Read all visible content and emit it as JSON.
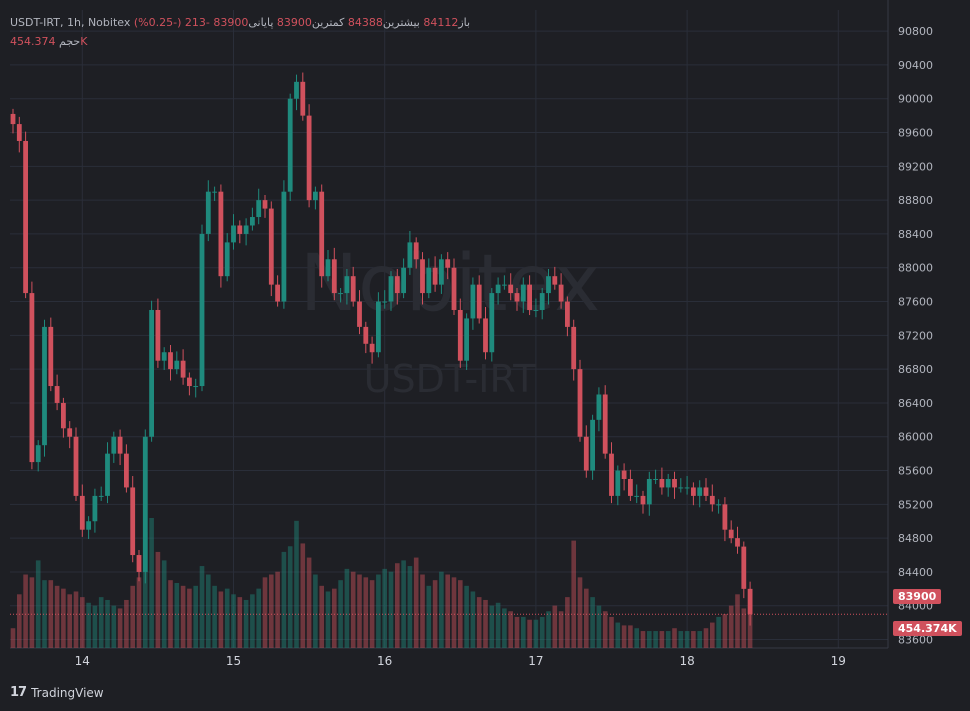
{
  "legend": {
    "symbol": "USDT-IRT, 1h, Nobitex",
    "open_label": "باز",
    "open": "84112",
    "high_label": "بیشترین",
    "high": "84388",
    "low_label": "کمترین",
    "low": "83900",
    "close_label": "پایانی",
    "close": "83900",
    "change": "-213 (-0.25%)",
    "volume_label": "حجم",
    "volume": "454.374K"
  },
  "watermark": {
    "line1": "Nobitex",
    "line2": "USDT-IRT"
  },
  "footer": {
    "brand": "TradingView",
    "logo": "17"
  },
  "colors": {
    "up": "#1f8a7d",
    "down": "#d0515d",
    "background": "#1e1f24",
    "grid": "#2a2e39"
  },
  "chart_data": {
    "type": "candlestick",
    "yticks": [
      83600,
      84000,
      84400,
      84800,
      85200,
      85600,
      86000,
      86400,
      86800,
      87200,
      87600,
      88000,
      88400,
      88800,
      89200,
      89600,
      90000,
      90400,
      90800
    ],
    "ytick_labels": [
      "83600",
      "84000",
      "84400",
      "84800",
      "85200",
      "85600",
      "86000",
      "86400",
      "86800",
      "87200",
      "87600",
      "88000",
      "88400",
      "88800",
      "89200",
      "89600",
      "90000",
      "90400",
      "90800"
    ],
    "ylim": [
      83500,
      91050
    ],
    "xtick_labels": [
      "14",
      "15",
      "16",
      "17",
      "18",
      "19"
    ],
    "xtick_hours": [
      11,
      35,
      59,
      83,
      107,
      131
    ],
    "current_price": "83900",
    "current_volume": "454.374K",
    "close": [
      89700,
      89500,
      87700,
      85700,
      85900,
      87300,
      86600,
      86400,
      86100,
      86000,
      85300,
      84900,
      85000,
      85300,
      85300,
      85800,
      86000,
      85800,
      85400,
      84600,
      84400,
      86000,
      87500,
      86900,
      87000,
      86800,
      86900,
      86700,
      86600,
      86600,
      88400,
      88900,
      88900,
      87900,
      88300,
      88500,
      88400,
      88500,
      88600,
      88800,
      88700,
      87800,
      87600,
      88900,
      90000,
      90200,
      89800,
      88800,
      88900,
      87900,
      88100,
      87700,
      87700,
      87900,
      87600,
      87300,
      87100,
      87000,
      87600,
      87600,
      87900,
      87700,
      88000,
      88300,
      88100,
      87700,
      88000,
      87800,
      88100,
      88000,
      87500,
      86900,
      87400,
      87800,
      87400,
      87000,
      87700,
      87800,
      87800,
      87700,
      87600,
      87800,
      87500,
      87500,
      87700,
      87900,
      87800,
      87600,
      87300,
      86800,
      86000,
      85600,
      86200,
      86500,
      85800,
      85300,
      85600,
      85500,
      85300,
      85300,
      85200,
      85500,
      85500,
      85400,
      85500,
      85400,
      85400,
      85400,
      85300,
      85400,
      85300,
      85200,
      85200,
      84900,
      84800,
      84700,
      84200,
      83900
    ],
    "volume": [
      14,
      38,
      52,
      50,
      62,
      48,
      48,
      44,
      42,
      38,
      40,
      36,
      32,
      30,
      36,
      34,
      30,
      28,
      34,
      44,
      50,
      82,
      92,
      68,
      62,
      48,
      46,
      44,
      42,
      44,
      58,
      52,
      44,
      40,
      42,
      38,
      36,
      34,
      38,
      42,
      50,
      52,
      54,
      68,
      72,
      90,
      74,
      64,
      52,
      44,
      40,
      42,
      48,
      56,
      54,
      52,
      50,
      48,
      52,
      56,
      54,
      60,
      62,
      58,
      64,
      52,
      44,
      48,
      54,
      52,
      50,
      48,
      44,
      40,
      36,
      34,
      30,
      32,
      28,
      26,
      22,
      22,
      20,
      20,
      22,
      26,
      30,
      26,
      36,
      76,
      50,
      42,
      36,
      30,
      26,
      22,
      18,
      16,
      16,
      14,
      12,
      12,
      12,
      12,
      12,
      14,
      12,
      12,
      12,
      12,
      14,
      18,
      22,
      24,
      30,
      38,
      28,
      24
    ]
  }
}
